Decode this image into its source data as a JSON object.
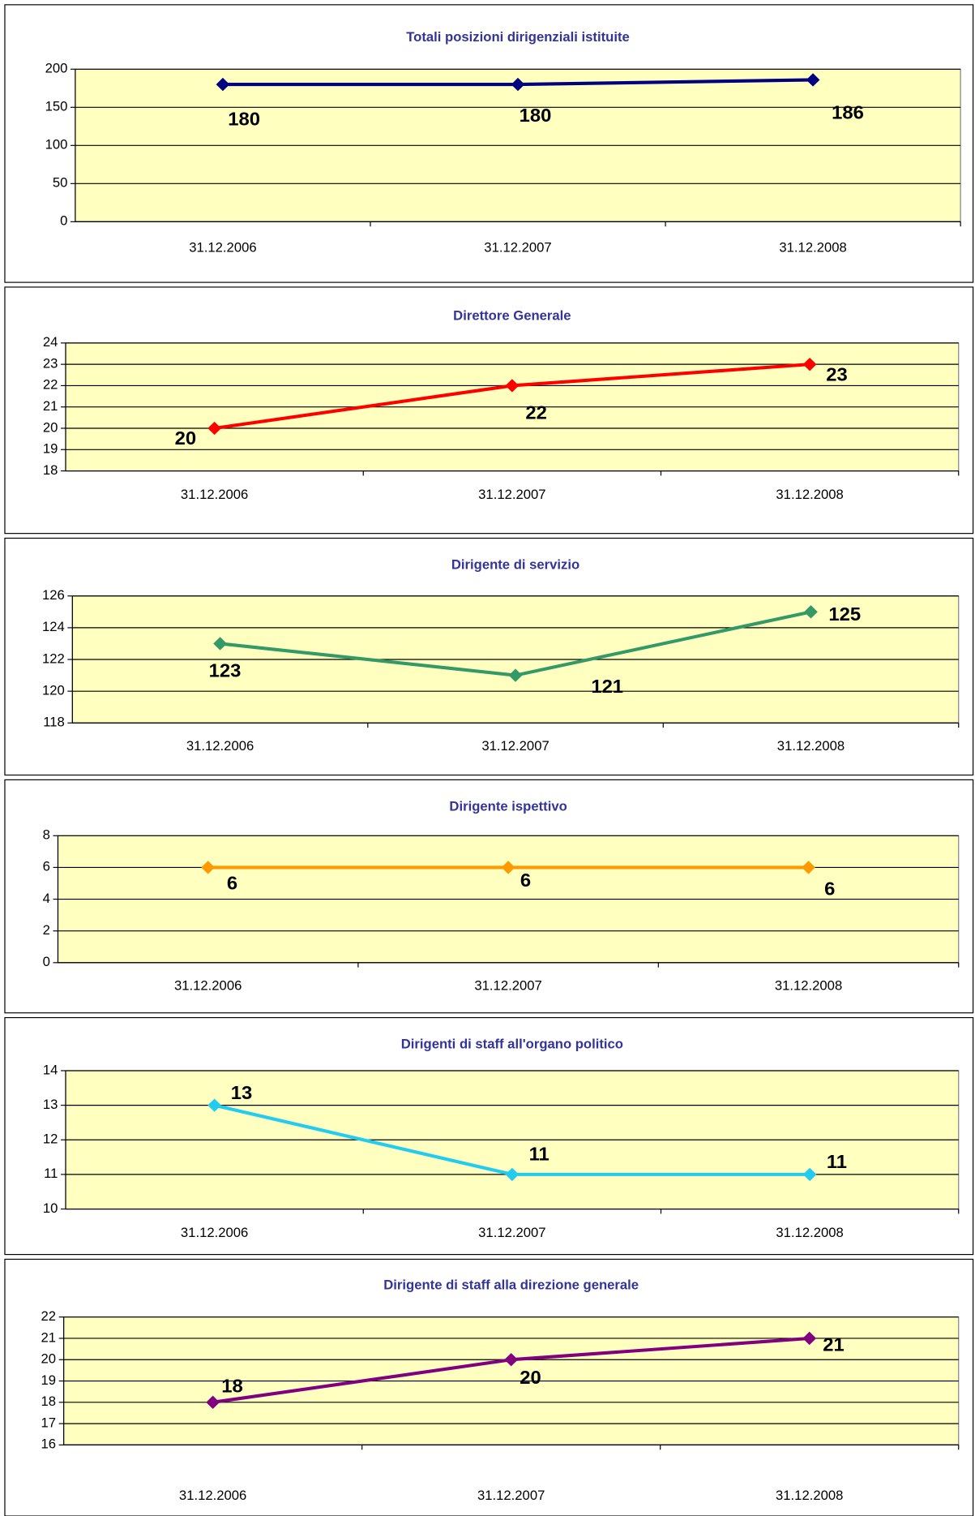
{
  "chart_data": [
    {
      "type": "line",
      "title": "Totali posizioni dirigenziali istituite",
      "categories": [
        "31.12.2006",
        "31.12.2007",
        "31.12.2008"
      ],
      "values": [
        180,
        180,
        186
      ],
      "color": "#000080",
      "ylim": [
        0,
        200
      ],
      "yticks": [
        0,
        50,
        100,
        150,
        200
      ],
      "grid": true
    },
    {
      "type": "line",
      "title": "Direttore Generale",
      "categories": [
        "31.12.2006",
        "31.12.2007",
        "31.12.2008"
      ],
      "values": [
        20,
        22,
        23
      ],
      "color": "#ff0000",
      "ylim": [
        18,
        24
      ],
      "yticks": [
        18,
        19,
        20,
        21,
        22,
        23,
        24
      ],
      "grid": true
    },
    {
      "type": "line",
      "title": "Dirigente di servizio",
      "categories": [
        "31.12.2006",
        "31.12.2007",
        "31.12.2008"
      ],
      "values": [
        123,
        121,
        125
      ],
      "color": "#339966",
      "ylim": [
        118,
        126
      ],
      "yticks": [
        118,
        120,
        122,
        124,
        126
      ],
      "grid": true
    },
    {
      "type": "line",
      "title": "Dirigente ispettivo",
      "categories": [
        "31.12.2006",
        "31.12.2007",
        "31.12.2008"
      ],
      "values": [
        6,
        6,
        6
      ],
      "color": "#ff9900",
      "ylim": [
        0,
        8
      ],
      "yticks": [
        0,
        2,
        4,
        6,
        8
      ],
      "grid": true
    },
    {
      "type": "line",
      "title": "Dirigenti di staff all'organo politico",
      "categories": [
        "31.12.2006",
        "31.12.2007",
        "31.12.2008"
      ],
      "values": [
        13,
        11,
        11
      ],
      "color": "#22ccf0",
      "ylim": [
        10,
        14
      ],
      "yticks": [
        10,
        11,
        12,
        13,
        14
      ],
      "grid": true
    },
    {
      "type": "line",
      "title": "Dirigente di staff alla direzione generale",
      "categories": [
        "31.12.2006",
        "31.12.2007",
        "31.12.2008"
      ],
      "values": [
        18,
        20,
        21
      ],
      "color": "#800080",
      "ylim": [
        16,
        22
      ],
      "yticks": [
        16,
        17,
        18,
        19,
        20,
        21,
        22
      ],
      "grid": true
    }
  ]
}
